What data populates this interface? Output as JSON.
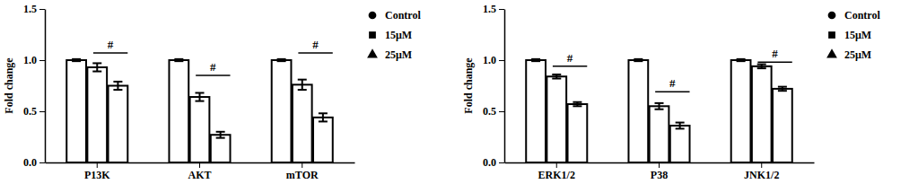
{
  "chart_data": [
    {
      "type": "bar",
      "y_label": "Fold change",
      "categories": [
        "P13K",
        "AKT",
        "mTOR"
      ],
      "series": [
        {
          "name": "Control",
          "color": "#000000",
          "marker": "circle",
          "values": [
            1.0,
            1.0,
            1.0
          ],
          "errors": [
            0.01,
            0.01,
            0.01
          ]
        },
        {
          "name": "15μM",
          "color": "#000000",
          "marker": "square",
          "values": [
            0.93,
            0.64,
            0.76
          ],
          "errors": [
            0.04,
            0.04,
            0.05
          ]
        },
        {
          "name": "25μM",
          "color": "#000000",
          "marker": "triangle",
          "values": [
            0.75,
            0.27,
            0.44
          ],
          "errors": [
            0.04,
            0.03,
            0.04
          ]
        }
      ],
      "ylim": [
        0,
        1.5
      ],
      "yticks": [
        {
          "value": 0,
          "label": "0.0"
        },
        {
          "value": 0.5,
          "label": "0.5"
        },
        {
          "value": 1,
          "label": "1.0"
        },
        {
          "value": 1.5,
          "label": "1.5"
        }
      ],
      "annotations": [
        {
          "label": "#",
          "y": 1.07
        },
        {
          "label": "#",
          "y": 0.85
        },
        {
          "label": "#",
          "y": 1.07
        }
      ],
      "legend": "right",
      "grid": false
    },
    {
      "type": "bar",
      "y_label": "Fold change",
      "categories": [
        "ERK1/2",
        "P38",
        "JNK1/2"
      ],
      "series": [
        {
          "name": "Control",
          "color": "#000000",
          "marker": "circle",
          "values": [
            1.0,
            1.0,
            1.0
          ],
          "errors": [
            0.01,
            0.01,
            0.01
          ]
        },
        {
          "name": "15μM",
          "color": "#000000",
          "marker": "square",
          "values": [
            0.84,
            0.55,
            0.94
          ],
          "errors": [
            0.02,
            0.03,
            0.02
          ]
        },
        {
          "name": "25μM",
          "color": "#000000",
          "marker": "triangle",
          "values": [
            0.57,
            0.36,
            0.72
          ],
          "errors": [
            0.02,
            0.03,
            0.02
          ]
        }
      ],
      "ylim": [
        0,
        1.5
      ],
      "yticks": [
        {
          "value": 0,
          "label": "0.0"
        },
        {
          "value": 0.5,
          "label": "0.5"
        },
        {
          "value": 1,
          "label": "1.0"
        },
        {
          "value": 1.5,
          "label": "1.5"
        }
      ],
      "annotations": [
        {
          "label": "#",
          "y": 0.94
        },
        {
          "label": "#",
          "y": 0.69
        },
        {
          "label": "#",
          "y": 0.98
        }
      ],
      "legend": "right",
      "grid": false
    }
  ]
}
